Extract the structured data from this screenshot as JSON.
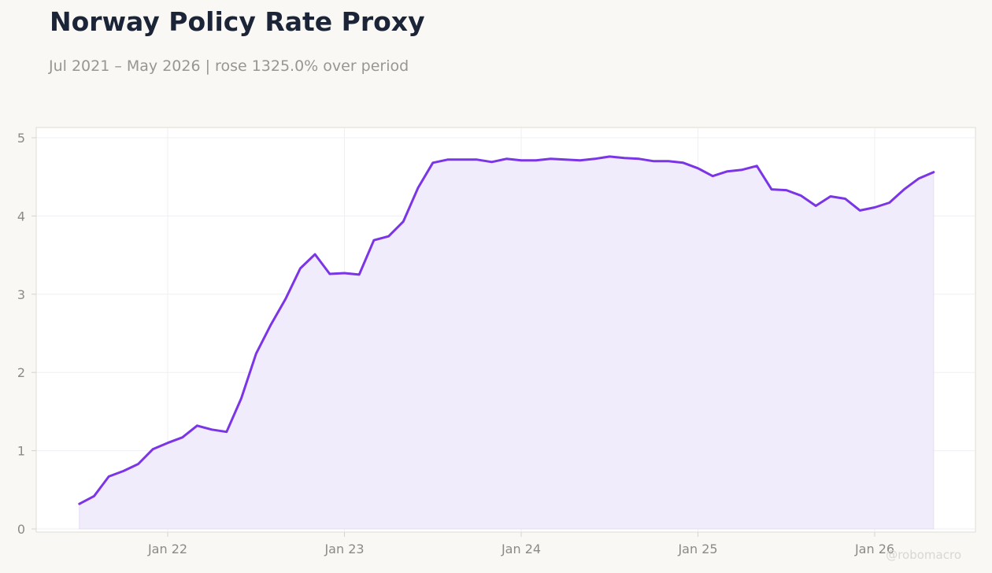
{
  "header": {
    "title": "Norway Policy Rate Proxy",
    "subtitle": "Jul 2021 – May 2026 | rose 1325.0% over period"
  },
  "watermark": "@robomacro",
  "colors": {
    "background": "#f9f8f5",
    "plot_background": "#ffffff",
    "line": "#7a35e6",
    "fill": "#f1ecfc",
    "grid": "#efeef3",
    "title": "#1b2537",
    "muted": "#999691"
  },
  "chart_data": {
    "type": "area",
    "title": "Norway Policy Rate Proxy",
    "subtitle": "Jul 2021 – May 2026 | rose 1325.0% over period",
    "xlabel": "",
    "ylabel": "",
    "x_ticks": [
      {
        "label": "Jan 22",
        "date": "2022-01"
      },
      {
        "label": "Jan 23",
        "date": "2023-01"
      },
      {
        "label": "Jan 24",
        "date": "2024-01"
      },
      {
        "label": "Jan 25",
        "date": "2025-01"
      },
      {
        "label": "Jan 26",
        "date": "2026-01"
      }
    ],
    "y_ticks": [
      0,
      1,
      2,
      3,
      4,
      5
    ],
    "ylim": [
      0,
      5.01
    ],
    "xlim": [
      "2021-05",
      "2026-07"
    ],
    "grid": true,
    "legend": "none",
    "x": [
      "2021-07",
      "2021-08",
      "2021-09",
      "2021-10",
      "2021-11",
      "2021-12",
      "2022-01",
      "2022-02",
      "2022-03",
      "2022-04",
      "2022-05",
      "2022-06",
      "2022-07",
      "2022-08",
      "2022-09",
      "2022-10",
      "2022-11",
      "2022-12",
      "2023-01",
      "2023-02",
      "2023-03",
      "2023-04",
      "2023-05",
      "2023-06",
      "2023-07",
      "2023-08",
      "2023-09",
      "2023-10",
      "2023-11",
      "2023-12",
      "2024-01",
      "2024-02",
      "2024-03",
      "2024-04",
      "2024-05",
      "2024-06",
      "2024-07",
      "2024-08",
      "2024-09",
      "2024-10",
      "2024-11",
      "2024-12",
      "2025-01",
      "2025-02",
      "2025-03",
      "2025-04",
      "2025-05",
      "2025-06",
      "2025-07",
      "2025-08",
      "2025-09",
      "2025-10",
      "2025-11",
      "2025-12",
      "2026-01",
      "2026-02",
      "2026-03",
      "2026-04",
      "2026-05"
    ],
    "values": [
      0.32,
      0.42,
      0.67,
      0.74,
      0.83,
      1.02,
      1.1,
      1.17,
      1.32,
      1.27,
      1.24,
      1.67,
      2.24,
      2.61,
      2.94,
      3.33,
      3.51,
      3.26,
      3.27,
      3.25,
      3.69,
      3.74,
      3.93,
      4.36,
      4.68,
      4.72,
      4.72,
      4.72,
      4.69,
      4.73,
      4.71,
      4.71,
      4.73,
      4.72,
      4.71,
      4.73,
      4.76,
      4.74,
      4.73,
      4.7,
      4.7,
      4.68,
      4.61,
      4.51,
      4.57,
      4.59,
      4.64,
      4.34,
      4.33,
      4.26,
      4.13,
      4.25,
      4.22,
      4.07,
      4.11,
      4.17,
      4.34,
      4.48,
      4.56
    ]
  }
}
